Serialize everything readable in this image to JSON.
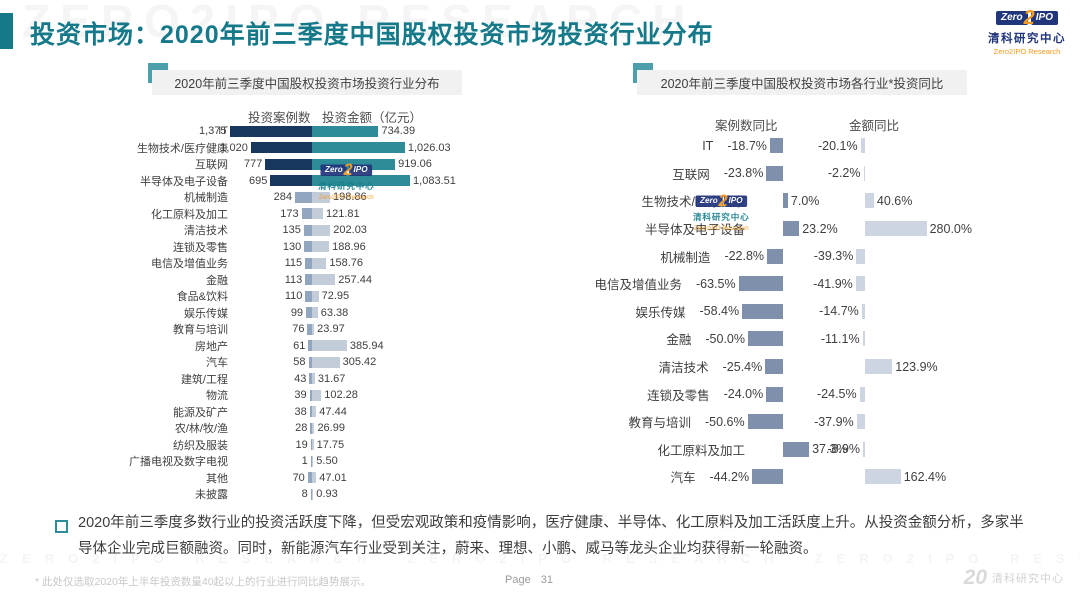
{
  "header": {
    "title": "投资市场：2020年前三季度中国股权投资市场投资行业分布",
    "watermark": "ZERO2IPO RESEARCH",
    "accent_color": "#15798a",
    "logo": {
      "zero": "Zero",
      "two": "2",
      "ipo": "IPO",
      "cn": "清科研究中心",
      "en": "Zero2IPO Research",
      "navy": "#21357b",
      "orange": "#f59b20"
    }
  },
  "chart_data": [
    {
      "type": "bar",
      "orientation": "horizontal-tornado",
      "title": "2020年前三季度中国股权投资市场投资行业分布",
      "series": [
        "投资案例数",
        "投资金额（亿元）"
      ],
      "categories": [
        "IT",
        "生物技术/医疗健康",
        "互联网",
        "半导体及电子设备",
        "机械制造",
        "化工原料及加工",
        "清洁技术",
        "连锁及零售",
        "电信及增值业务",
        "金融",
        "食品&饮料",
        "娱乐传媒",
        "教育与培训",
        "房地产",
        "汽车",
        "建筑/工程",
        "物流",
        "能源及矿产",
        "农/林/牧/渔",
        "纺织及服装",
        "广播电视及数字电视",
        "其他",
        "未披露"
      ],
      "cases": [
        1375,
        1020,
        777,
        695,
        284,
        173,
        135,
        130,
        115,
        113,
        110,
        99,
        76,
        61,
        58,
        43,
        39,
        38,
        28,
        19,
        1,
        70,
        8
      ],
      "amounts": [
        734.39,
        1026.03,
        919.06,
        1083.51,
        198.86,
        121.81,
        202.03,
        188.96,
        158.76,
        257.44,
        72.95,
        63.38,
        23.97,
        385.94,
        305.42,
        31.67,
        102.28,
        47.44,
        26.99,
        17.75,
        5.5,
        47.01,
        0.93
      ],
      "highlight_rows": 4,
      "colors": {
        "cases_highlight": "#17375e",
        "amount_highlight": "#2e8c99",
        "cases_normal": "#93a6bf",
        "amount_normal": "#c3cdda"
      }
    },
    {
      "type": "bar",
      "orientation": "horizontal-diverging",
      "title": "2020年前三季度中国股权投资市场各行业*投资同比",
      "series": [
        "案例数同比",
        "金额同比"
      ],
      "categories": [
        "IT",
        "互联网",
        "生物技术/医疗健康",
        "半导体及电子设备",
        "机械制造",
        "电信及增值业务",
        "娱乐传媒",
        "金融",
        "清洁技术",
        "连锁及零售",
        "教育与培训",
        "化工原料及加工",
        "汽车"
      ],
      "case_yoy": [
        -18.7,
        -23.8,
        7.0,
        23.2,
        -22.8,
        -63.5,
        -58.4,
        -50.0,
        -25.4,
        -24.0,
        -50.6,
        37.3,
        -44.2
      ],
      "amount_yoy": [
        -20.1,
        -2.2,
        40.6,
        280.0,
        -39.3,
        -41.9,
        -14.7,
        -11.1,
        123.9,
        -24.5,
        -37.9,
        -8.9,
        162.4
      ],
      "colors": {
        "case_bar": "#7e90ab",
        "amount_bar": "#ccd5e1"
      }
    }
  ],
  "note": "2020年前三季度多数行业的投资活跃度下降，但受宏观政策和疫情影响，医疗健康、半导体、化工原料及加工活跃度上升。从投资金额分析，多家半导体企业完成巨额融资。同时，新能源汽车行业受到关注，蔚来、理想、小鹏、威马等龙头企业均获得新一轮融资。",
  "footnote": "* 此处仅选取2020年上半年投资数量40起以上的行业进行同比趋势展示。",
  "footer": {
    "page_label": "Page",
    "page_number": "31",
    "anniversary": "20",
    "brand": "清科研究中心",
    "watermark": "ZERO2IPO RESEARCH　ZERO2IPO RESEARCH　ZERO2IPO RESEARCH　ZERO2IPO RESEARCH"
  }
}
